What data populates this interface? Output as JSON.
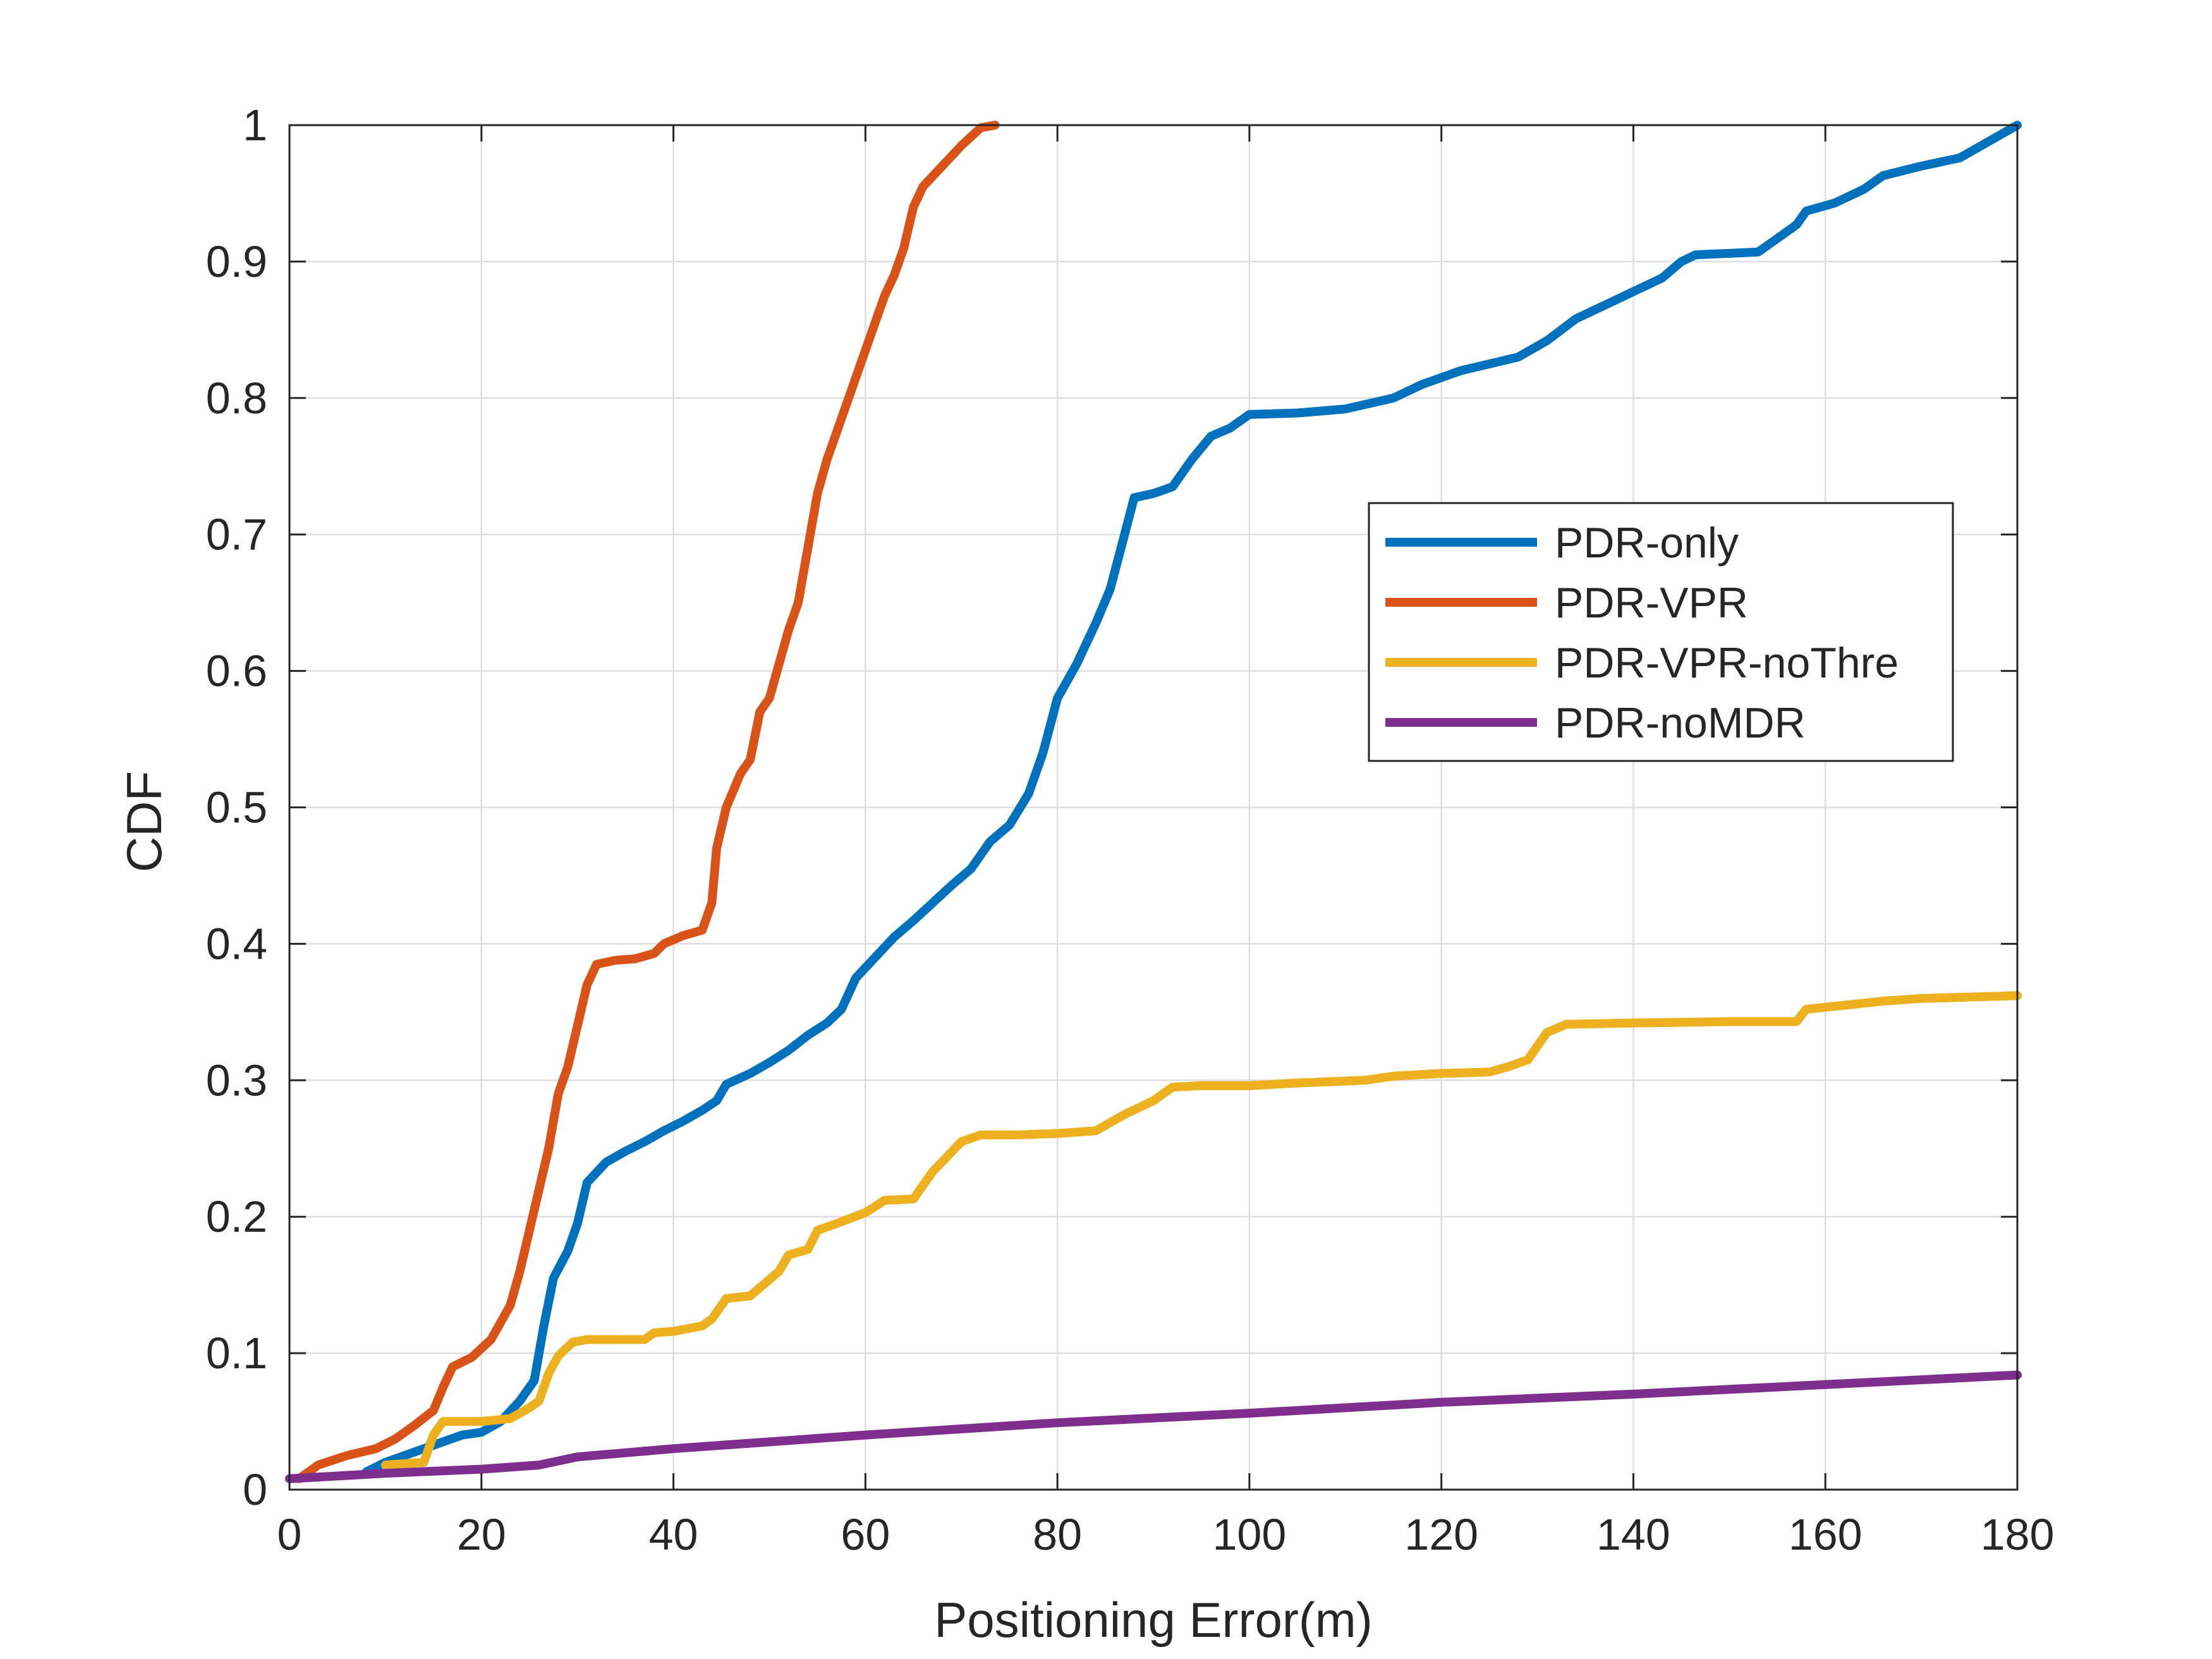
{
  "chart_data": {
    "type": "line",
    "title": "",
    "xlabel": "Positioning Error(m)",
    "ylabel": "CDF",
    "xlim": [
      0,
      180
    ],
    "ylim": [
      0,
      1
    ],
    "xticks": [
      0,
      20,
      40,
      60,
      80,
      100,
      120,
      140,
      160,
      180
    ],
    "yticks": [
      0,
      0.1,
      0.2,
      0.3,
      0.4,
      0.5,
      0.6,
      0.7,
      0.8,
      0.9,
      1
    ],
    "xtick_labels": [
      "0",
      "20",
      "40",
      "60",
      "80",
      "100",
      "120",
      "140",
      "160",
      "180"
    ],
    "ytick_labels": [
      "0",
      "0.1",
      "0.2",
      "0.3",
      "0.4",
      "0.5",
      "0.6",
      "0.7",
      "0.8",
      "0.9",
      "1"
    ],
    "grid": true,
    "legend_position": "right-middle",
    "series": [
      {
        "name": "PDR-only",
        "color": "#0072BD",
        "points": [
          [
            8,
            0.013
          ],
          [
            10,
            0.02
          ],
          [
            12,
            0.025
          ],
          [
            14,
            0.03
          ],
          [
            16,
            0.035
          ],
          [
            18,
            0.04
          ],
          [
            20,
            0.042
          ],
          [
            22,
            0.05
          ],
          [
            24,
            0.065
          ],
          [
            25.5,
            0.08
          ],
          [
            26.5,
            0.12
          ],
          [
            27.5,
            0.155
          ],
          [
            29,
            0.175
          ],
          [
            30,
            0.195
          ],
          [
            31,
            0.225
          ],
          [
            33,
            0.24
          ],
          [
            35,
            0.248
          ],
          [
            37,
            0.255
          ],
          [
            39,
            0.263
          ],
          [
            41,
            0.27
          ],
          [
            43,
            0.278
          ],
          [
            44.5,
            0.285
          ],
          [
            45.5,
            0.297
          ],
          [
            48,
            0.305
          ],
          [
            50,
            0.313
          ],
          [
            52,
            0.322
          ],
          [
            54,
            0.333
          ],
          [
            56,
            0.342
          ],
          [
            57.5,
            0.352
          ],
          [
            59,
            0.375
          ],
          [
            61,
            0.39
          ],
          [
            63,
            0.405
          ],
          [
            65,
            0.417
          ],
          [
            67,
            0.43
          ],
          [
            69,
            0.443
          ],
          [
            71,
            0.455
          ],
          [
            73,
            0.475
          ],
          [
            75,
            0.487
          ],
          [
            77,
            0.51
          ],
          [
            78.5,
            0.54
          ],
          [
            80,
            0.58
          ],
          [
            82,
            0.605
          ],
          [
            84,
            0.635
          ],
          [
            85.5,
            0.66
          ],
          [
            87,
            0.7
          ],
          [
            88,
            0.727
          ],
          [
            90,
            0.73
          ],
          [
            92,
            0.735
          ],
          [
            94,
            0.755
          ],
          [
            96,
            0.772
          ],
          [
            98,
            0.778
          ],
          [
            100,
            0.788
          ],
          [
            105,
            0.789
          ],
          [
            110,
            0.792
          ],
          [
            115,
            0.8
          ],
          [
            118,
            0.81
          ],
          [
            122,
            0.82
          ],
          [
            125,
            0.825
          ],
          [
            128,
            0.83
          ],
          [
            131,
            0.842
          ],
          [
            134,
            0.858
          ],
          [
            137,
            0.868
          ],
          [
            140,
            0.878
          ],
          [
            143,
            0.888
          ],
          [
            145,
            0.9
          ],
          [
            146.5,
            0.905
          ],
          [
            150,
            0.906
          ],
          [
            153,
            0.907
          ],
          [
            155,
            0.917
          ],
          [
            157,
            0.927
          ],
          [
            158,
            0.937
          ],
          [
            161,
            0.943
          ],
          [
            164,
            0.953
          ],
          [
            166,
            0.963
          ],
          [
            170,
            0.97
          ],
          [
            174,
            0.976
          ],
          [
            177,
            0.988
          ],
          [
            180,
            1.0
          ]
        ]
      },
      {
        "name": "PDR-VPR",
        "color": "#D95319",
        "points": [
          [
            1,
            0.008
          ],
          [
            3,
            0.018
          ],
          [
            6,
            0.025
          ],
          [
            9,
            0.03
          ],
          [
            11,
            0.037
          ],
          [
            13,
            0.047
          ],
          [
            15,
            0.058
          ],
          [
            16,
            0.075
          ],
          [
            17,
            0.09
          ],
          [
            19,
            0.097
          ],
          [
            21,
            0.11
          ],
          [
            23,
            0.135
          ],
          [
            24,
            0.16
          ],
          [
            25,
            0.19
          ],
          [
            26,
            0.22
          ],
          [
            27,
            0.25
          ],
          [
            28,
            0.29
          ],
          [
            29,
            0.31
          ],
          [
            30,
            0.34
          ],
          [
            31,
            0.37
          ],
          [
            32,
            0.385
          ],
          [
            34,
            0.388
          ],
          [
            36,
            0.389
          ],
          [
            38,
            0.393
          ],
          [
            39,
            0.4
          ],
          [
            41,
            0.406
          ],
          [
            43,
            0.41
          ],
          [
            44,
            0.43
          ],
          [
            44.5,
            0.47
          ],
          [
            45.5,
            0.5
          ],
          [
            47,
            0.525
          ],
          [
            48,
            0.535
          ],
          [
            49,
            0.57
          ],
          [
            50,
            0.58
          ],
          [
            51,
            0.605
          ],
          [
            52,
            0.63
          ],
          [
            53,
            0.65
          ],
          [
            54,
            0.69
          ],
          [
            55,
            0.73
          ],
          [
            56,
            0.755
          ],
          [
            57,
            0.775
          ],
          [
            58,
            0.795
          ],
          [
            59,
            0.815
          ],
          [
            60,
            0.835
          ],
          [
            61,
            0.855
          ],
          [
            62,
            0.875
          ],
          [
            63,
            0.89
          ],
          [
            64,
            0.91
          ],
          [
            65,
            0.94
          ],
          [
            66,
            0.955
          ],
          [
            68,
            0.97
          ],
          [
            70,
            0.985
          ],
          [
            72,
            0.998
          ],
          [
            73.5,
            1.0
          ]
        ]
      },
      {
        "name": "PDR-VPR-noThre",
        "color": "#EDB120",
        "points": [
          [
            10,
            0.018
          ],
          [
            14,
            0.02
          ],
          [
            15,
            0.04
          ],
          [
            16,
            0.05
          ],
          [
            20,
            0.05
          ],
          [
            23,
            0.052
          ],
          [
            25,
            0.06
          ],
          [
            26,
            0.065
          ],
          [
            27,
            0.085
          ],
          [
            28,
            0.098
          ],
          [
            29.5,
            0.108
          ],
          [
            31,
            0.11
          ],
          [
            34,
            0.11
          ],
          [
            37,
            0.11
          ],
          [
            38,
            0.115
          ],
          [
            40,
            0.116
          ],
          [
            43,
            0.12
          ],
          [
            44,
            0.125
          ],
          [
            45.5,
            0.14
          ],
          [
            48,
            0.142
          ],
          [
            49,
            0.148
          ],
          [
            51,
            0.16
          ],
          [
            52,
            0.172
          ],
          [
            54,
            0.176
          ],
          [
            55,
            0.19
          ],
          [
            57,
            0.195
          ],
          [
            60,
            0.203
          ],
          [
            62,
            0.212
          ],
          [
            65,
            0.213
          ],
          [
            67,
            0.233
          ],
          [
            70,
            0.255
          ],
          [
            72,
            0.26
          ],
          [
            76,
            0.26
          ],
          [
            80,
            0.261
          ],
          [
            84,
            0.263
          ],
          [
            87,
            0.275
          ],
          [
            90,
            0.285
          ],
          [
            92,
            0.295
          ],
          [
            95,
            0.296
          ],
          [
            100,
            0.296
          ],
          [
            105,
            0.298
          ],
          [
            112,
            0.3
          ],
          [
            115,
            0.303
          ],
          [
            120,
            0.305
          ],
          [
            125,
            0.306
          ],
          [
            127,
            0.31
          ],
          [
            129,
            0.315
          ],
          [
            131,
            0.335
          ],
          [
            133,
            0.341
          ],
          [
            140,
            0.342
          ],
          [
            150,
            0.343
          ],
          [
            157,
            0.343
          ],
          [
            158,
            0.352
          ],
          [
            162,
            0.355
          ],
          [
            166,
            0.358
          ],
          [
            170,
            0.36
          ],
          [
            175,
            0.361
          ],
          [
            180,
            0.362
          ]
        ]
      },
      {
        "name": "PDR-noMDR",
        "color": "#7E2F8E",
        "points": [
          [
            0,
            0.008
          ],
          [
            10,
            0.012
          ],
          [
            20,
            0.015
          ],
          [
            26,
            0.018
          ],
          [
            30,
            0.024
          ],
          [
            40,
            0.03
          ],
          [
            60,
            0.04
          ],
          [
            80,
            0.049
          ],
          [
            100,
            0.056
          ],
          [
            120,
            0.064
          ],
          [
            140,
            0.07
          ],
          [
            160,
            0.077
          ],
          [
            180,
            0.084
          ]
        ]
      }
    ]
  }
}
